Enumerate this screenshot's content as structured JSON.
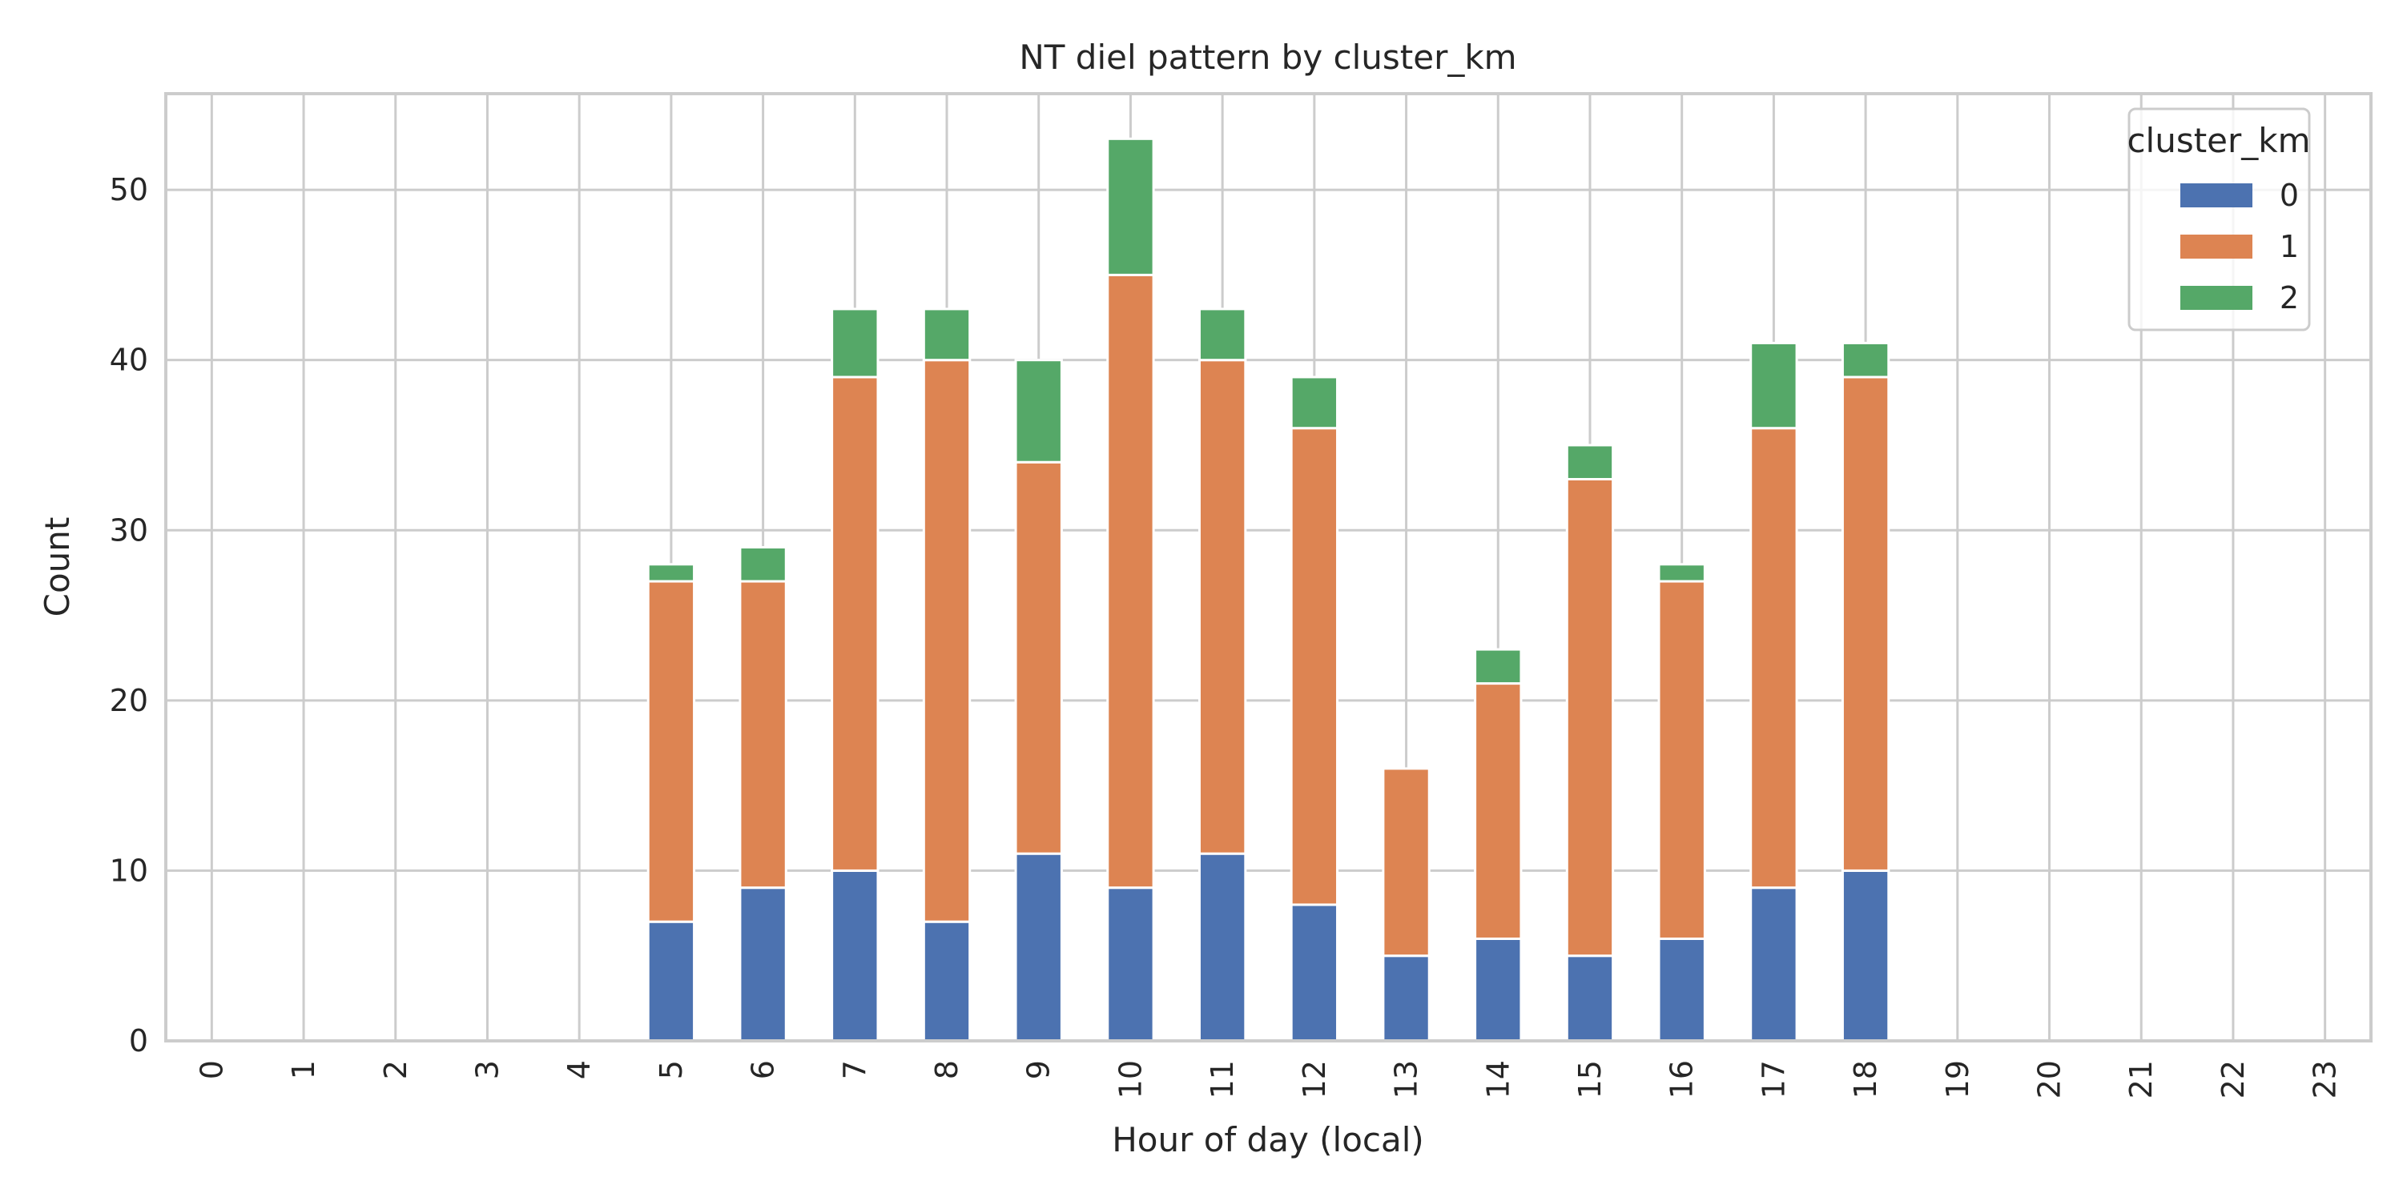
{
  "chart_data": {
    "type": "bar",
    "stacked": true,
    "title": "NT diel pattern by cluster_km",
    "xlabel": "Hour of day (local)",
    "ylabel": "Count",
    "categories": [
      "0",
      "1",
      "2",
      "3",
      "4",
      "5",
      "6",
      "7",
      "8",
      "9",
      "10",
      "11",
      "12",
      "13",
      "14",
      "15",
      "16",
      "17",
      "18",
      "19",
      "20",
      "21",
      "22",
      "23"
    ],
    "series": [
      {
        "name": "0",
        "color": "#4c72b0",
        "values": [
          0,
          0,
          0,
          0,
          0,
          7,
          9,
          10,
          7,
          11,
          9,
          11,
          8,
          5,
          6,
          5,
          6,
          9,
          10,
          0,
          0,
          0,
          0,
          0
        ]
      },
      {
        "name": "1",
        "color": "#dd8452",
        "values": [
          0,
          0,
          0,
          0,
          0,
          20,
          18,
          29,
          33,
          23,
          36,
          29,
          28,
          11,
          15,
          28,
          21,
          27,
          29,
          0,
          0,
          0,
          0,
          0
        ]
      },
      {
        "name": "2",
        "color": "#55a868",
        "values": [
          0,
          0,
          0,
          0,
          0,
          1,
          2,
          4,
          3,
          6,
          8,
          3,
          3,
          0,
          2,
          2,
          1,
          5,
          2,
          0,
          0,
          0,
          0,
          0
        ]
      }
    ],
    "ylim": [
      0,
      55.65
    ],
    "yticks": [
      0,
      10,
      20,
      30,
      40,
      50
    ],
    "grid": true,
    "legend": {
      "title": "cluster_km",
      "position": "top-right"
    }
  }
}
